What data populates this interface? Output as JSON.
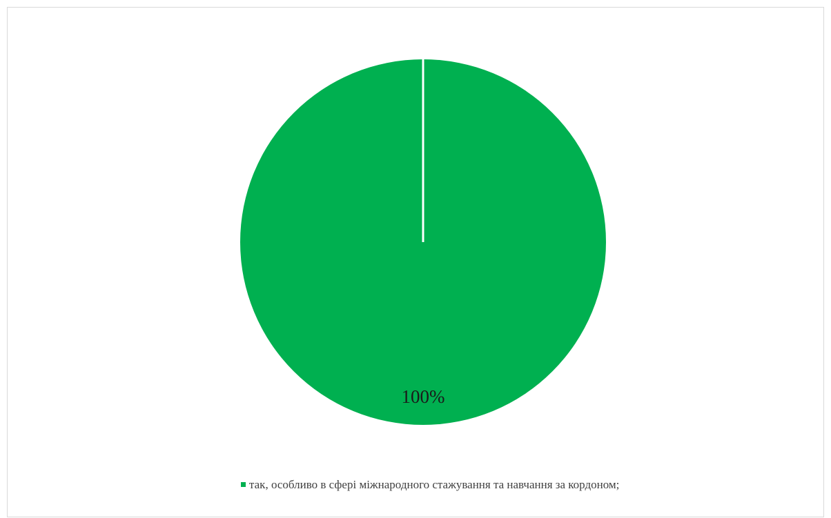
{
  "chart_data": {
    "type": "pie",
    "slices": [
      {
        "label": "так, особливо в сфері міжнародного стажування та навчання за кордоном;",
        "value": 100,
        "data_label": "100%",
        "color": "#00B050"
      }
    ],
    "legend_position": "bottom",
    "separator_color": "#ffffff"
  }
}
